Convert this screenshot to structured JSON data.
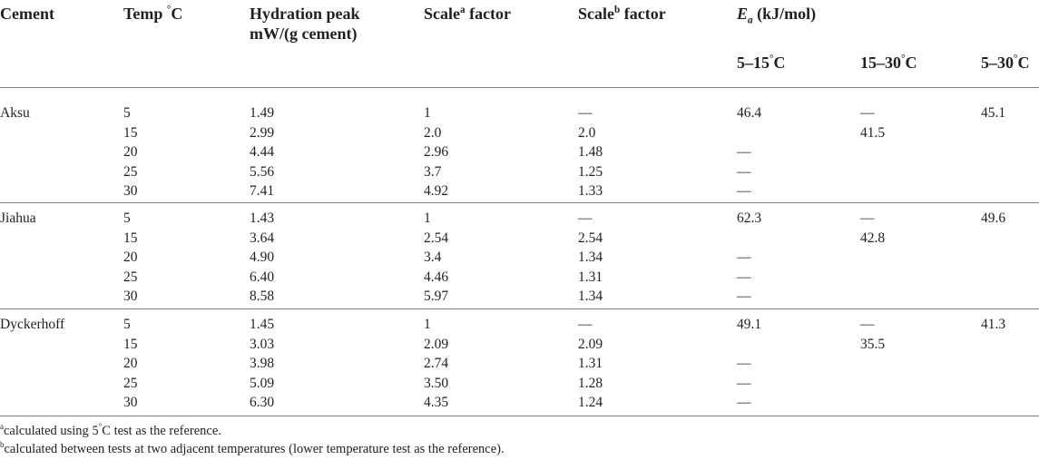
{
  "headers": {
    "cement": "Cement",
    "temp": "Temp",
    "temp_unit": "C",
    "hydration_line1": "Hydration peak",
    "hydration_line2": "mW/(g cement)",
    "scale_a_pre": "Scale",
    "scale_a_sup": "a",
    "scale_a_post": " factor",
    "scale_b_pre": "Scale",
    "scale_b_sup": "b",
    "scale_b_post": " factor",
    "ea_symbol": "E",
    "ea_sub": "a",
    "ea_unit": " (kJ/mol)",
    "sub_5_15": "5–15",
    "sub_15_30": "15–30",
    "sub_5_30": "5–30",
    "sub_unit": "C",
    "degree": "°"
  },
  "groups": [
    {
      "name": "Aksu",
      "rows": [
        {
          "temp": "5",
          "peak": "1.49",
          "scale_a": "1",
          "scale_b": "—",
          "ea_5_15": "46.4",
          "ea_15_30": "—",
          "ea_5_30": "45.1"
        },
        {
          "temp": "15",
          "peak": "2.99",
          "scale_a": "2.0",
          "scale_b": "2.0",
          "ea_5_15": "",
          "ea_15_30": "41.5",
          "ea_5_30": ""
        },
        {
          "temp": "20",
          "peak": "4.44",
          "scale_a": "2.96",
          "scale_b": "1.48",
          "ea_5_15": "—",
          "ea_15_30": "",
          "ea_5_30": ""
        },
        {
          "temp": "25",
          "peak": "5.56",
          "scale_a": "3.7",
          "scale_b": "1.25",
          "ea_5_15": "—",
          "ea_15_30": "",
          "ea_5_30": ""
        },
        {
          "temp": "30",
          "peak": "7.41",
          "scale_a": "4.92",
          "scale_b": "1.33",
          "ea_5_15": "—",
          "ea_15_30": "",
          "ea_5_30": ""
        }
      ]
    },
    {
      "name": "Jiahua",
      "rows": [
        {
          "temp": "5",
          "peak": "1.43",
          "scale_a": "1",
          "scale_b": "—",
          "ea_5_15": "62.3",
          "ea_15_30": "—",
          "ea_5_30": "49.6"
        },
        {
          "temp": "15",
          "peak": "3.64",
          "scale_a": "2.54",
          "scale_b": "2.54",
          "ea_5_15": "",
          "ea_15_30": "42.8",
          "ea_5_30": ""
        },
        {
          "temp": "20",
          "peak": "4.90",
          "scale_a": "3.4",
          "scale_b": "1.34",
          "ea_5_15": "—",
          "ea_15_30": "",
          "ea_5_30": ""
        },
        {
          "temp": "25",
          "peak": "6.40",
          "scale_a": "4.46",
          "scale_b": "1.31",
          "ea_5_15": "—",
          "ea_15_30": "",
          "ea_5_30": ""
        },
        {
          "temp": "30",
          "peak": "8.58",
          "scale_a": "5.97",
          "scale_b": "1.34",
          "ea_5_15": "—",
          "ea_15_30": "",
          "ea_5_30": ""
        }
      ]
    },
    {
      "name": "Dyckerhoff",
      "rows": [
        {
          "temp": "5",
          "peak": "1.45",
          "scale_a": "1",
          "scale_b": "—",
          "ea_5_15": "49.1",
          "ea_15_30": "—",
          "ea_5_30": "41.3"
        },
        {
          "temp": "15",
          "peak": "3.03",
          "scale_a": "2.09",
          "scale_b": "2.09",
          "ea_5_15": "",
          "ea_15_30": "35.5",
          "ea_5_30": ""
        },
        {
          "temp": "20",
          "peak": "3.98",
          "scale_a": "2.74",
          "scale_b": "1.31",
          "ea_5_15": "—",
          "ea_15_30": "",
          "ea_5_30": ""
        },
        {
          "temp": "25",
          "peak": "5.09",
          "scale_a": "3.50",
          "scale_b": "1.28",
          "ea_5_15": "—",
          "ea_15_30": "",
          "ea_5_30": ""
        },
        {
          "temp": "30",
          "peak": "6.30",
          "scale_a": "4.35",
          "scale_b": "1.24",
          "ea_5_15": "—",
          "ea_15_30": "",
          "ea_5_30": ""
        }
      ]
    }
  ],
  "footnotes": [
    {
      "mark": "a",
      "pre": "calculated using 5",
      "deg": "°",
      "post": "C test as the reference."
    },
    {
      "mark": "b",
      "pre": "calculated between tests at two adjacent temperatures (lower temperature test as the reference).",
      "deg": "",
      "post": ""
    }
  ]
}
